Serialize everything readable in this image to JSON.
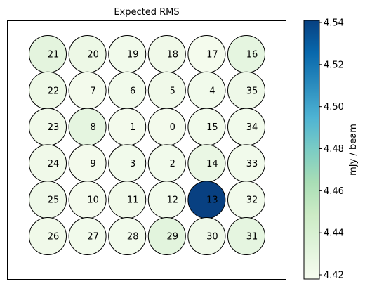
{
  "chart_data": {
    "type": "heatmap",
    "title": "Expected RMS",
    "colorbar": {
      "label": "mJy / beam",
      "vmin": 4.418,
      "vmax": 4.541,
      "ticks": [
        "4.42",
        "4.44",
        "4.46",
        "4.48",
        "4.50",
        "4.52",
        "4.54"
      ],
      "tick_values": [
        4.42,
        4.44,
        4.46,
        4.48,
        4.5,
        4.52,
        4.54
      ],
      "colormap": [
        "#f7fcf0",
        "#e0f3db",
        "#ccebc5",
        "#a8ddb5",
        "#7bccc4",
        "#4eb3d3",
        "#2b8cbe",
        "#0868ac",
        "#084081"
      ]
    },
    "grid_rows": 6,
    "grid_cols": 6,
    "cells": [
      {
        "id": "21",
        "row": 0,
        "col": 0,
        "value": 4.431
      },
      {
        "id": "20",
        "row": 0,
        "col": 1,
        "value": 4.425
      },
      {
        "id": "19",
        "row": 0,
        "col": 2,
        "value": 4.422
      },
      {
        "id": "18",
        "row": 0,
        "col": 3,
        "value": 4.423
      },
      {
        "id": "17",
        "row": 0,
        "col": 4,
        "value": 4.42
      },
      {
        "id": "16",
        "row": 0,
        "col": 5,
        "value": 4.43
      },
      {
        "id": "22",
        "row": 1,
        "col": 0,
        "value": 4.425
      },
      {
        "id": "7",
        "row": 1,
        "col": 1,
        "value": 4.421
      },
      {
        "id": "6",
        "row": 1,
        "col": 2,
        "value": 4.422
      },
      {
        "id": "5",
        "row": 1,
        "col": 3,
        "value": 4.423
      },
      {
        "id": "4",
        "row": 1,
        "col": 4,
        "value": 4.422
      },
      {
        "id": "35",
        "row": 1,
        "col": 5,
        "value": 4.424
      },
      {
        "id": "23",
        "row": 2,
        "col": 0,
        "value": 4.423
      },
      {
        "id": "8",
        "row": 2,
        "col": 1,
        "value": 4.43
      },
      {
        "id": "1",
        "row": 2,
        "col": 2,
        "value": 4.421
      },
      {
        "id": "0",
        "row": 2,
        "col": 3,
        "value": 4.421
      },
      {
        "id": "15",
        "row": 2,
        "col": 4,
        "value": 4.422
      },
      {
        "id": "34",
        "row": 2,
        "col": 5,
        "value": 4.422
      },
      {
        "id": "24",
        "row": 3,
        "col": 0,
        "value": 4.423
      },
      {
        "id": "9",
        "row": 3,
        "col": 1,
        "value": 4.421
      },
      {
        "id": "3",
        "row": 3,
        "col": 2,
        "value": 4.422
      },
      {
        "id": "2",
        "row": 3,
        "col": 3,
        "value": 4.422
      },
      {
        "id": "14",
        "row": 3,
        "col": 4,
        "value": 4.427
      },
      {
        "id": "33",
        "row": 3,
        "col": 5,
        "value": 4.422
      },
      {
        "id": "25",
        "row": 4,
        "col": 0,
        "value": 4.424
      },
      {
        "id": "10",
        "row": 4,
        "col": 1,
        "value": 4.421
      },
      {
        "id": "11",
        "row": 4,
        "col": 2,
        "value": 4.423
      },
      {
        "id": "12",
        "row": 4,
        "col": 3,
        "value": 4.422
      },
      {
        "id": "13",
        "row": 4,
        "col": 4,
        "value": 4.541
      },
      {
        "id": "32",
        "row": 4,
        "col": 5,
        "value": 4.422
      },
      {
        "id": "26",
        "row": 5,
        "col": 0,
        "value": 4.423
      },
      {
        "id": "27",
        "row": 5,
        "col": 1,
        "value": 4.422
      },
      {
        "id": "28",
        "row": 5,
        "col": 2,
        "value": 4.422
      },
      {
        "id": "29",
        "row": 5,
        "col": 3,
        "value": 4.432
      },
      {
        "id": "30",
        "row": 5,
        "col": 4,
        "value": 4.424
      },
      {
        "id": "31",
        "row": 5,
        "col": 5,
        "value": 4.43
      }
    ]
  }
}
